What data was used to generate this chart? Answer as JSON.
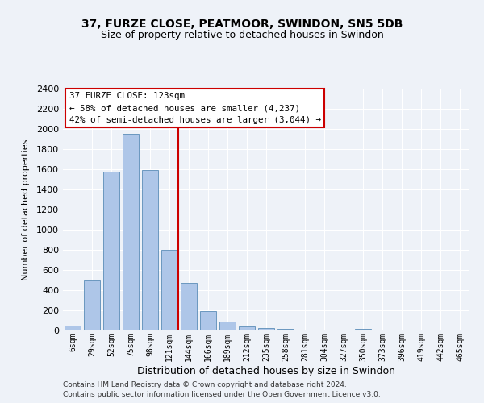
{
  "title": "37, FURZE CLOSE, PEATMOOR, SWINDON, SN5 5DB",
  "subtitle": "Size of property relative to detached houses in Swindon",
  "xlabel": "Distribution of detached houses by size in Swindon",
  "ylabel": "Number of detached properties",
  "categories": [
    "6sqm",
    "29sqm",
    "52sqm",
    "75sqm",
    "98sqm",
    "121sqm",
    "144sqm",
    "166sqm",
    "189sqm",
    "212sqm",
    "235sqm",
    "258sqm",
    "281sqm",
    "304sqm",
    "327sqm",
    "350sqm",
    "373sqm",
    "396sqm",
    "419sqm",
    "442sqm",
    "465sqm"
  ],
  "values": [
    50,
    500,
    1580,
    1950,
    1590,
    800,
    475,
    195,
    90,
    38,
    25,
    18,
    0,
    0,
    0,
    15,
    0,
    0,
    0,
    0,
    0
  ],
  "bar_color": "#aec6e8",
  "bar_edge_color": "#5b8db8",
  "vline_pos": 5.45,
  "vline_color": "#cc0000",
  "annotation_text": "37 FURZE CLOSE: 123sqm\n← 58% of detached houses are smaller (4,237)\n42% of semi-detached houses are larger (3,044) →",
  "annotation_box_color": "#ffffff",
  "annotation_box_edge": "#cc0000",
  "ylim": [
    0,
    2400
  ],
  "yticks": [
    0,
    200,
    400,
    600,
    800,
    1000,
    1200,
    1400,
    1600,
    1800,
    2000,
    2200,
    2400
  ],
  "footnote1": "Contains HM Land Registry data © Crown copyright and database right 2024.",
  "footnote2": "Contains public sector information licensed under the Open Government Licence v3.0.",
  "bg_color": "#eef2f8",
  "plot_bg_color": "#eef2f8",
  "title_fontsize": 10,
  "subtitle_fontsize": 9,
  "grid_color": "#ffffff"
}
